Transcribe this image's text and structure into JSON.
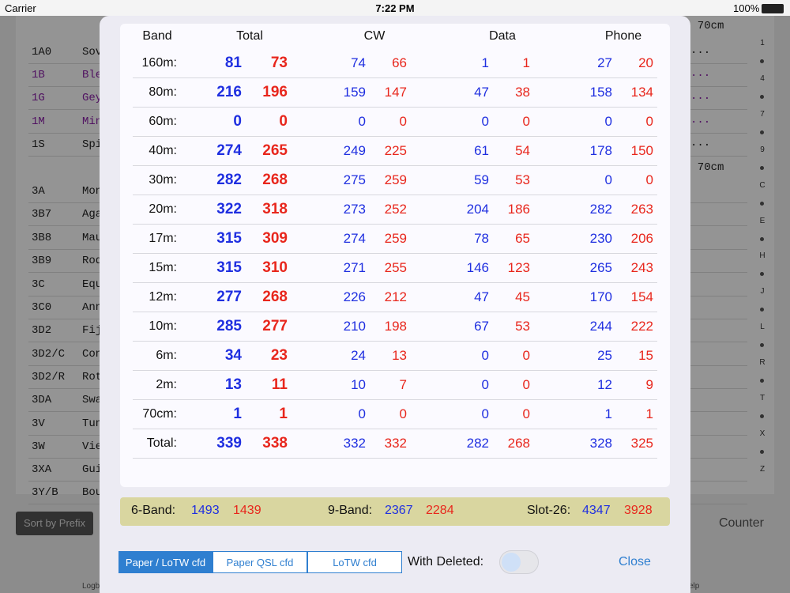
{
  "status_bar": {
    "carrier": "Carrier",
    "time": "7:22 PM",
    "battery": "100%"
  },
  "background": {
    "list": [
      {
        "prefix": "1A0",
        "name": "Sov",
        "trail": "..."
      },
      {
        "prefix": "1B",
        "name": "Ble",
        "trail": "..."
      },
      {
        "prefix": "1G",
        "name": "Gey",
        "trail": "..."
      },
      {
        "prefix": "1M",
        "name": "Min",
        "trail": "..."
      },
      {
        "prefix": "1S",
        "name": "Spi",
        "trail": "..."
      },
      {
        "prefix": "3A",
        "name": "Mon"
      },
      {
        "prefix": "3B7",
        "name": "Aga"
      },
      {
        "prefix": "3B8",
        "name": "Mau"
      },
      {
        "prefix": "3B9",
        "name": "Rod"
      },
      {
        "prefix": "3C",
        "name": "Equ"
      },
      {
        "prefix": "3C0",
        "name": "Ann"
      },
      {
        "prefix": "3D2",
        "name": "Fij"
      },
      {
        "prefix": "3D2/C",
        "name": "Con"
      },
      {
        "prefix": "3D2/R",
        "name": "Rot"
      },
      {
        "prefix": "3DA",
        "name": "Swa"
      },
      {
        "prefix": "3V",
        "name": "Tun"
      },
      {
        "prefix": "3W",
        "name": "Vie"
      },
      {
        "prefix": "3XA",
        "name": "Gui"
      },
      {
        "prefix": "3Y/B",
        "name": "Bou"
      }
    ],
    "band_headers": [
      "m 70cm",
      "m 70cm"
    ],
    "index": [
      "1",
      "4",
      "7",
      "9",
      "C",
      "E",
      "H",
      "J",
      "L",
      "R",
      "T",
      "X",
      "Z"
    ],
    "sort_button": "Sort by Prefix",
    "counter": "Counter",
    "tabs": [
      "Logb",
      "elp"
    ]
  },
  "dialog": {
    "headers": [
      "Band",
      "Total",
      "CW",
      "Data",
      "Phone"
    ],
    "rows": [
      {
        "band": "160m:",
        "total": [
          81,
          73
        ],
        "cw": [
          74,
          66
        ],
        "data": [
          1,
          1
        ],
        "phone": [
          27,
          20
        ]
      },
      {
        "band": "80m:",
        "total": [
          216,
          196
        ],
        "cw": [
          159,
          147
        ],
        "data": [
          47,
          38
        ],
        "phone": [
          158,
          134
        ]
      },
      {
        "band": "60m:",
        "total": [
          0,
          0
        ],
        "cw": [
          0,
          0
        ],
        "data": [
          0,
          0
        ],
        "phone": [
          0,
          0
        ]
      },
      {
        "band": "40m:",
        "total": [
          274,
          265
        ],
        "cw": [
          249,
          225
        ],
        "data": [
          61,
          54
        ],
        "phone": [
          178,
          150
        ]
      },
      {
        "band": "30m:",
        "total": [
          282,
          268
        ],
        "cw": [
          275,
          259
        ],
        "data": [
          59,
          53
        ],
        "phone": [
          0,
          0
        ]
      },
      {
        "band": "20m:",
        "total": [
          322,
          318
        ],
        "cw": [
          273,
          252
        ],
        "data": [
          204,
          186
        ],
        "phone": [
          282,
          263
        ]
      },
      {
        "band": "17m:",
        "total": [
          315,
          309
        ],
        "cw": [
          274,
          259
        ],
        "data": [
          78,
          65
        ],
        "phone": [
          230,
          206
        ]
      },
      {
        "band": "15m:",
        "total": [
          315,
          310
        ],
        "cw": [
          271,
          255
        ],
        "data": [
          146,
          123
        ],
        "phone": [
          265,
          243
        ]
      },
      {
        "band": "12m:",
        "total": [
          277,
          268
        ],
        "cw": [
          226,
          212
        ],
        "data": [
          47,
          45
        ],
        "phone": [
          170,
          154
        ]
      },
      {
        "band": "10m:",
        "total": [
          285,
          277
        ],
        "cw": [
          210,
          198
        ],
        "data": [
          67,
          53
        ],
        "phone": [
          244,
          222
        ]
      },
      {
        "band": "6m:",
        "total": [
          34,
          23
        ],
        "cw": [
          24,
          13
        ],
        "data": [
          0,
          0
        ],
        "phone": [
          25,
          15
        ]
      },
      {
        "band": "2m:",
        "total": [
          13,
          11
        ],
        "cw": [
          10,
          7
        ],
        "data": [
          0,
          0
        ],
        "phone": [
          12,
          9
        ]
      },
      {
        "band": "70cm:",
        "total": [
          1,
          1
        ],
        "cw": [
          0,
          0
        ],
        "data": [
          0,
          0
        ],
        "phone": [
          1,
          1
        ]
      },
      {
        "band": "Total:",
        "total": [
          339,
          338
        ],
        "cw": [
          332,
          332
        ],
        "data": [
          282,
          268
        ],
        "phone": [
          328,
          325
        ]
      }
    ],
    "summary": [
      {
        "label": "6-Band:",
        "values": [
          1493,
          1439
        ]
      },
      {
        "label": "9-Band:",
        "values": [
          2367,
          2284
        ]
      },
      {
        "label": "Slot-26:",
        "values": [
          4347,
          3928
        ]
      }
    ],
    "segments": [
      "Paper / LoTW cfd",
      "Paper QSL cfd",
      "LoTW cfd"
    ],
    "with_deleted": "With Deleted:",
    "close": "Close"
  }
}
